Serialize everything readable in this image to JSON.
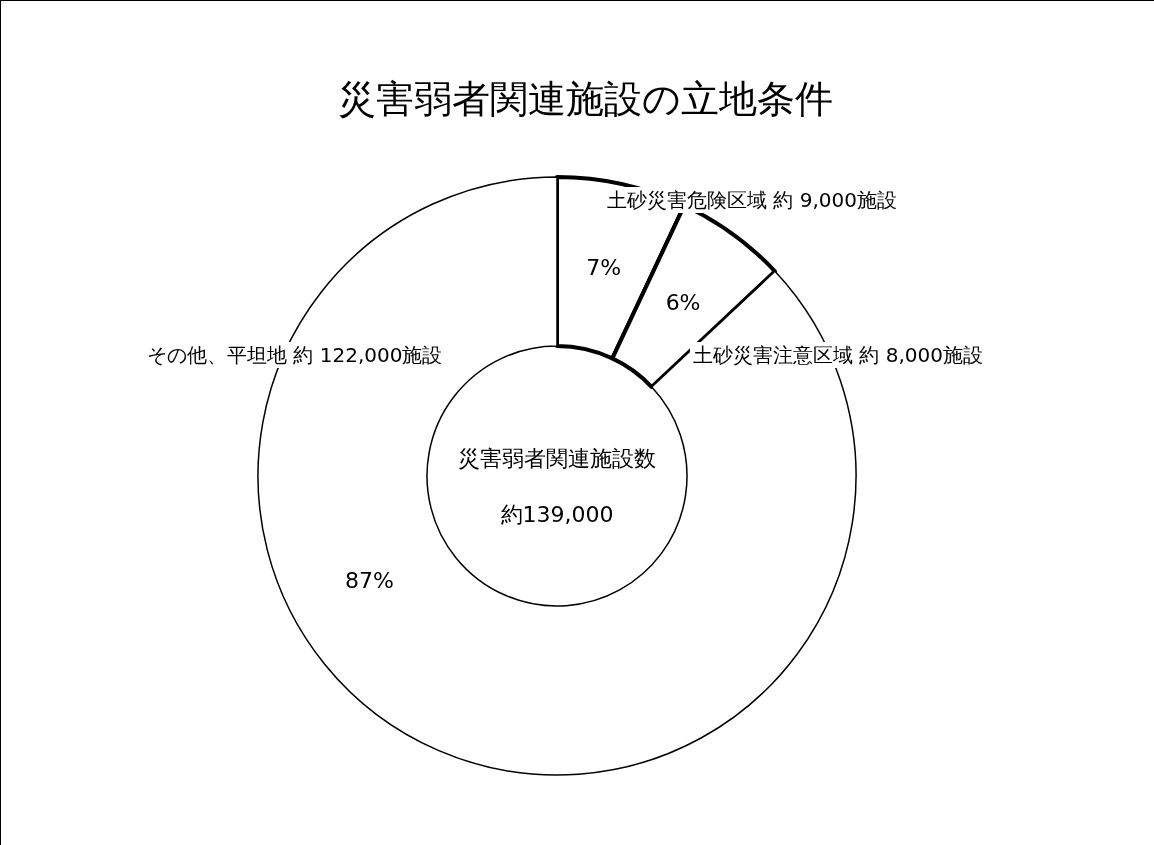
{
  "chart_data": {
    "type": "donut",
    "title": "災害弱者関連施設の立地条件",
    "categories": [
      "土砂災害危険区域 約 9,000施設",
      "土砂災害注意区域  約 8,000施設",
      "その他、平坦地 約 122,000施設"
    ],
    "values": [
      7,
      6,
      87
    ],
    "colors": [
      "#ffffff",
      "#ffffff",
      "#ffffff"
    ],
    "value_labels": [
      "7%",
      "6%",
      "87%"
    ],
    "annotations": [
      "災害弱者関連施設数",
      "約139,000"
    ]
  }
}
